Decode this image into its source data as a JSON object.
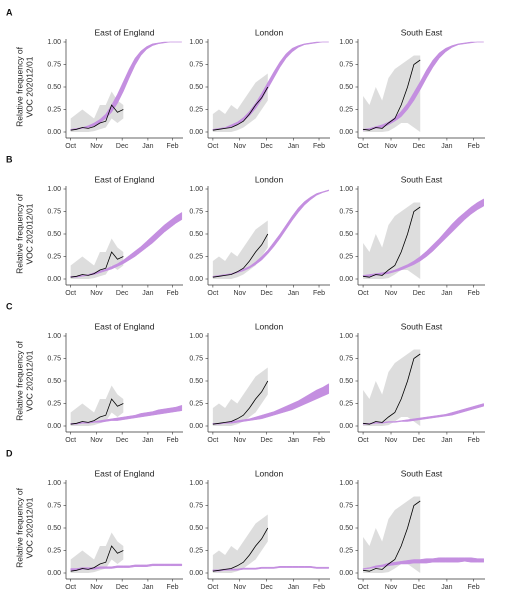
{
  "chart_data": {
    "type": "line",
    "categories": [
      "Oct",
      "Nov",
      "Dec",
      "Jan",
      "Feb"
    ],
    "ylim": [
      0,
      1
    ],
    "yticks": [
      {
        "value": 0,
        "label": "0.00"
      },
      {
        "value": 0.25,
        "label": "0.25"
      },
      {
        "value": 0.5,
        "label": "0.50"
      },
      {
        "value": 0.75,
        "label": "0.75"
      },
      {
        "value": 1,
        "label": "1.00"
      }
    ],
    "ylabel": [
      "Relative frequency of",
      "VOC 202012/01"
    ],
    "band_color": "#c48fe0",
    "line_color": "#000000",
    "range_color": "#d4d4d4",
    "regions": [
      {
        "name": "East of England",
        "observed": [
          0.02,
          0.03,
          0.05,
          0.04,
          0.06,
          0.1,
          0.12,
          0.3,
          0.22,
          0.25,
          null,
          null,
          null,
          null,
          null,
          null,
          null,
          null,
          null,
          null
        ],
        "observed_low": [
          0,
          0,
          0,
          0,
          0.01,
          0.03,
          0.05,
          0.15,
          0.1,
          0.15,
          null,
          null,
          null,
          null,
          null,
          null,
          null,
          null,
          null,
          null
        ],
        "observed_high": [
          0.15,
          0.2,
          0.25,
          0.2,
          0.15,
          0.3,
          0.3,
          0.45,
          0.35,
          0.3,
          null,
          null,
          null,
          null,
          null,
          null,
          null,
          null,
          null,
          null
        ]
      },
      {
        "name": "London",
        "observed": [
          0.02,
          0.03,
          0.04,
          0.05,
          0.08,
          0.12,
          0.2,
          0.3,
          0.38,
          0.5,
          null,
          null,
          null,
          null,
          null,
          null,
          null,
          null,
          null,
          null
        ],
        "observed_low": [
          0,
          0,
          0,
          0,
          0.02,
          0.05,
          0.1,
          0.15,
          0.25,
          0.35,
          null,
          null,
          null,
          null,
          null,
          null,
          null,
          null,
          null,
          null
        ],
        "observed_high": [
          0.2,
          0.25,
          0.2,
          0.3,
          0.25,
          0.35,
          0.45,
          0.55,
          0.6,
          0.65,
          null,
          null,
          null,
          null,
          null,
          null,
          null,
          null,
          null,
          null
        ]
      },
      {
        "name": "South East",
        "observed": [
          0.03,
          0.02,
          0.05,
          0.04,
          0.1,
          0.15,
          0.3,
          0.5,
          0.75,
          0.8,
          null,
          null,
          null,
          null,
          null,
          null,
          null,
          null,
          null,
          null
        ],
        "observed_low": [
          0,
          0,
          0,
          0,
          0.01,
          0.05,
          0.1,
          0.1,
          0.05,
          0,
          null,
          null,
          null,
          null,
          null,
          null,
          null,
          null,
          null,
          null
        ],
        "observed_high": [
          0.4,
          0.3,
          0.5,
          0.35,
          0.6,
          0.7,
          0.75,
          0.8,
          0.85,
          0.85,
          null,
          null,
          null,
          null,
          null,
          null,
          null,
          null,
          null,
          null
        ]
      }
    ],
    "rows": [
      {
        "label": "A",
        "bands": [
          {
            "lower": [
              0.02,
              0.03,
              0.04,
              0.05,
              0.07,
              0.1,
              0.15,
              0.22,
              0.32,
              0.45,
              0.6,
              0.74,
              0.85,
              0.92,
              0.96,
              0.98,
              0.99,
              1,
              1,
              1
            ],
            "upper": [
              0.03,
              0.04,
              0.05,
              0.07,
              0.1,
              0.14,
              0.2,
              0.3,
              0.42,
              0.56,
              0.7,
              0.82,
              0.9,
              0.95,
              0.98,
              0.99,
              1,
              1,
              1,
              1
            ]
          },
          {
            "lower": [
              0.02,
              0.03,
              0.04,
              0.06,
              0.08,
              0.12,
              0.18,
              0.26,
              0.36,
              0.48,
              0.6,
              0.72,
              0.82,
              0.89,
              0.94,
              0.97,
              0.98,
              0.99,
              1,
              1
            ],
            "upper": [
              0.03,
              0.04,
              0.05,
              0.08,
              0.11,
              0.16,
              0.23,
              0.32,
              0.43,
              0.55,
              0.67,
              0.78,
              0.87,
              0.93,
              0.96,
              0.98,
              0.99,
              1,
              1,
              1
            ]
          },
          {
            "lower": [
              0.02,
              0.03,
              0.04,
              0.05,
              0.08,
              0.12,
              0.17,
              0.25,
              0.35,
              0.47,
              0.6,
              0.72,
              0.82,
              0.89,
              0.94,
              0.97,
              0.98,
              0.99,
              1,
              1
            ],
            "upper": [
              0.03,
              0.04,
              0.06,
              0.08,
              0.11,
              0.16,
              0.23,
              0.32,
              0.44,
              0.56,
              0.69,
              0.8,
              0.88,
              0.93,
              0.96,
              0.98,
              0.99,
              1,
              1,
              1
            ]
          }
        ]
      },
      {
        "label": "B",
        "bands": [
          {
            "lower": [
              0.02,
              0.02,
              0.03,
              0.04,
              0.05,
              0.07,
              0.09,
              0.11,
              0.14,
              0.17,
              0.21,
              0.25,
              0.3,
              0.35,
              0.4,
              0.46,
              0.52,
              0.57,
              0.62,
              0.66
            ],
            "upper": [
              0.03,
              0.03,
              0.04,
              0.05,
              0.07,
              0.09,
              0.11,
              0.14,
              0.17,
              0.21,
              0.26,
              0.31,
              0.36,
              0.42,
              0.48,
              0.54,
              0.6,
              0.65,
              0.7,
              0.74
            ]
          },
          {
            "lower": [
              0.02,
              0.03,
              0.04,
              0.05,
              0.07,
              0.09,
              0.12,
              0.16,
              0.21,
              0.28,
              0.36,
              0.45,
              0.55,
              0.65,
              0.74,
              0.82,
              0.88,
              0.93,
              0.96,
              0.98
            ],
            "upper": [
              0.03,
              0.04,
              0.05,
              0.06,
              0.08,
              0.11,
              0.14,
              0.19,
              0.25,
              0.32,
              0.41,
              0.5,
              0.6,
              0.7,
              0.79,
              0.86,
              0.91,
              0.95,
              0.97,
              0.99
            ]
          },
          {
            "lower": [
              0.03,
              0.03,
              0.04,
              0.05,
              0.06,
              0.08,
              0.1,
              0.13,
              0.16,
              0.2,
              0.25,
              0.31,
              0.38,
              0.45,
              0.52,
              0.59,
              0.66,
              0.72,
              0.77,
              0.81
            ],
            "upper": [
              0.04,
              0.05,
              0.06,
              0.07,
              0.08,
              0.1,
              0.13,
              0.16,
              0.2,
              0.25,
              0.31,
              0.38,
              0.45,
              0.53,
              0.61,
              0.68,
              0.74,
              0.8,
              0.85,
              0.89
            ]
          }
        ]
      },
      {
        "label": "C",
        "bands": [
          {
            "lower": [
              0.02,
              0.02,
              0.03,
              0.03,
              0.04,
              0.04,
              0.05,
              0.06,
              0.06,
              0.07,
              0.08,
              0.09,
              0.1,
              0.11,
              0.12,
              0.13,
              0.14,
              0.15,
              0.16,
              0.17
            ],
            "upper": [
              0.03,
              0.03,
              0.04,
              0.04,
              0.05,
              0.06,
              0.07,
              0.08,
              0.09,
              0.1,
              0.11,
              0.12,
              0.14,
              0.15,
              0.16,
              0.18,
              0.19,
              0.2,
              0.21,
              0.23
            ]
          },
          {
            "lower": [
              0.02,
              0.02,
              0.03,
              0.03,
              0.04,
              0.05,
              0.06,
              0.07,
              0.08,
              0.1,
              0.12,
              0.14,
              0.16,
              0.18,
              0.21,
              0.24,
              0.27,
              0.3,
              0.33,
              0.36
            ],
            "upper": [
              0.03,
              0.03,
              0.04,
              0.05,
              0.06,
              0.07,
              0.08,
              0.1,
              0.12,
              0.14,
              0.16,
              0.19,
              0.22,
              0.25,
              0.28,
              0.32,
              0.36,
              0.4,
              0.43,
              0.47
            ]
          },
          {
            "lower": [
              0.02,
              0.02,
              0.03,
              0.03,
              0.04,
              0.04,
              0.05,
              0.05,
              0.06,
              0.07,
              0.08,
              0.09,
              0.1,
              0.11,
              0.12,
              0.14,
              0.16,
              0.18,
              0.2,
              0.22
            ],
            "upper": [
              0.03,
              0.03,
              0.04,
              0.04,
              0.05,
              0.05,
              0.06,
              0.07,
              0.08,
              0.09,
              0.1,
              0.11,
              0.12,
              0.13,
              0.15,
              0.17,
              0.19,
              0.21,
              0.23,
              0.25
            ]
          }
        ]
      },
      {
        "label": "D",
        "bands": [
          {
            "lower": [
              0.03,
              0.03,
              0.04,
              0.04,
              0.04,
              0.05,
              0.05,
              0.05,
              0.06,
              0.06,
              0.06,
              0.07,
              0.07,
              0.07,
              0.08,
              0.08,
              0.08,
              0.08,
              0.08,
              0.08
            ],
            "upper": [
              0.05,
              0.05,
              0.06,
              0.06,
              0.06,
              0.07,
              0.07,
              0.07,
              0.08,
              0.08,
              0.08,
              0.09,
              0.09,
              0.09,
              0.1,
              0.1,
              0.1,
              0.1,
              0.1,
              0.1
            ]
          },
          {
            "lower": [
              0.02,
              0.02,
              0.03,
              0.03,
              0.03,
              0.04,
              0.04,
              0.04,
              0.05,
              0.05,
              0.05,
              0.06,
              0.06,
              0.06,
              0.06,
              0.06,
              0.06,
              0.05,
              0.05,
              0.05
            ],
            "upper": [
              0.035,
              0.035,
              0.045,
              0.045,
              0.045,
              0.055,
              0.055,
              0.055,
              0.065,
              0.065,
              0.065,
              0.075,
              0.075,
              0.075,
              0.075,
              0.075,
              0.075,
              0.065,
              0.065,
              0.065
            ]
          },
          {
            "lower": [
              0.04,
              0.05,
              0.06,
              0.07,
              0.08,
              0.09,
              0.1,
              0.1,
              0.11,
              0.11,
              0.11,
              0.12,
              0.12,
              0.12,
              0.12,
              0.12,
              0.13,
              0.12,
              0.12,
              0.12
            ],
            "upper": [
              0.05,
              0.06,
              0.08,
              0.09,
              0.11,
              0.12,
              0.13,
              0.14,
              0.15,
              0.15,
              0.16,
              0.16,
              0.17,
              0.17,
              0.17,
              0.17,
              0.17,
              0.17,
              0.16,
              0.16
            ]
          }
        ]
      }
    ]
  }
}
